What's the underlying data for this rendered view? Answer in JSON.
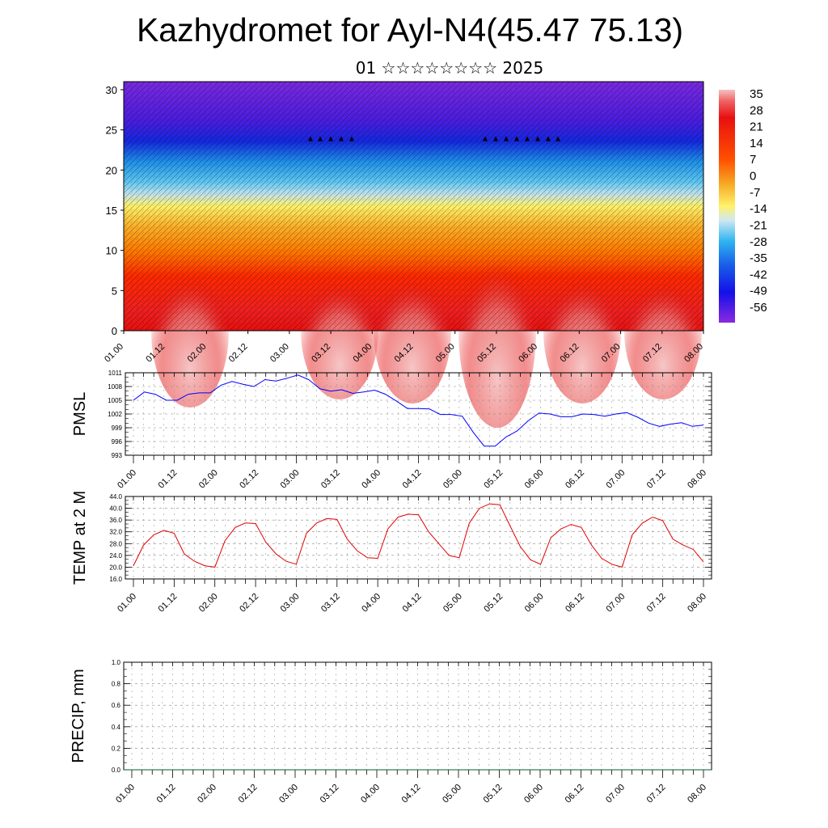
{
  "title": "Kazhydromet for Ayl-N4(45.47 75.13)",
  "subtitle": "01 ☆☆☆☆☆☆☆☆ 2025",
  "time_ticks": [
    "01.00",
    "01.12",
    "02.00",
    "02.12",
    "03.00",
    "03.12",
    "04.00",
    "04.12",
    "05.00",
    "05.12",
    "06.00",
    "06.12",
    "07.00",
    "07.12",
    "08.00"
  ],
  "chart_data": [
    {
      "type": "heatmap",
      "name": "vertical-section",
      "x_ticks": [
        "01.00",
        "01.12",
        "02.00",
        "02.12",
        "03.00",
        "03.12",
        "04.00",
        "04.12",
        "05.00",
        "05.12",
        "06.00",
        "06.12",
        "07.00",
        "07.12",
        "08.00"
      ],
      "ylim": [
        0,
        31
      ],
      "y_ticks": [
        "0",
        "5",
        "10",
        "15",
        "20",
        "25",
        "30"
      ],
      "colorbar_labels": [
        "35",
        "28",
        "21",
        "14",
        "7",
        "0",
        "-7",
        "-14",
        "-21",
        "-28",
        "-35",
        "-42",
        "-49",
        "-56"
      ],
      "colors": {
        "cold": "#6a1fd6",
        "cool": "#1aa8e6",
        "neutral": "#fff26b",
        "warm": "#f6a623",
        "hot": "#e81010",
        "max": "#f4b8b8"
      }
    },
    {
      "type": "line",
      "name": "pmsl",
      "ylabel": "PMSL",
      "ylim": [
        993,
        1011
      ],
      "y_ticks": [
        "993",
        "996",
        "999",
        "1002",
        "1005",
        "1008",
        "1011"
      ],
      "color": "#0000ff",
      "values": [
        1005,
        1006.8,
        1006.3,
        1005,
        1005,
        1006.3,
        1006.6,
        1006.6,
        1008.3,
        1009.1,
        1008.5,
        1008,
        1009.5,
        1009.2,
        1009.8,
        1010.5,
        1009.5,
        1007.5,
        1007,
        1007.3,
        1006.5,
        1006.8,
        1007.2,
        1006.3,
        1004.8,
        1003.2,
        1003.2,
        1003.1,
        1001.9,
        1001.9,
        1001.5,
        998,
        995,
        995,
        997,
        998.3,
        1000.5,
        1002.2,
        1002,
        1001.4,
        1001.4,
        1002,
        1001.9,
        1001.5,
        1002,
        1002.3,
        1001.3,
        1000,
        999.3,
        999.8,
        1000.1,
        999.3,
        999.6
      ]
    },
    {
      "type": "line",
      "name": "temp",
      "ylabel": "TEMP at 2 M",
      "ylim": [
        16,
        44
      ],
      "y_ticks": [
        "16.0",
        "20.0",
        "24.0",
        "28.0",
        "32.0",
        "36.0",
        "40.0",
        "44.0"
      ],
      "color": "#e00000",
      "values": [
        20.5,
        27.5,
        31,
        32.5,
        31.5,
        24.5,
        22,
        20.5,
        20,
        29,
        33.5,
        35,
        34.8,
        28.5,
        24.5,
        22,
        21,
        31.5,
        35,
        36.5,
        36.2,
        29.5,
        25.5,
        23.2,
        23,
        33,
        37,
        38,
        37.8,
        32,
        28,
        24,
        23.2,
        35,
        40,
        41.5,
        41.2,
        34,
        27,
        22.5,
        21,
        30,
        33,
        34.5,
        33.5,
        27.5,
        23,
        21,
        20,
        31,
        35,
        37,
        35.8,
        29.5,
        27.5,
        26,
        21.8
      ]
    },
    {
      "type": "line",
      "name": "precip",
      "ylabel": "PRECIP, mm",
      "ylim": [
        0,
        1
      ],
      "y_ticks": [
        "0.0",
        "0.2",
        "0.4",
        "0.6",
        "0.8",
        "1.0"
      ],
      "color": "#0a5a2a",
      "values": [
        0,
        0
      ]
    }
  ]
}
